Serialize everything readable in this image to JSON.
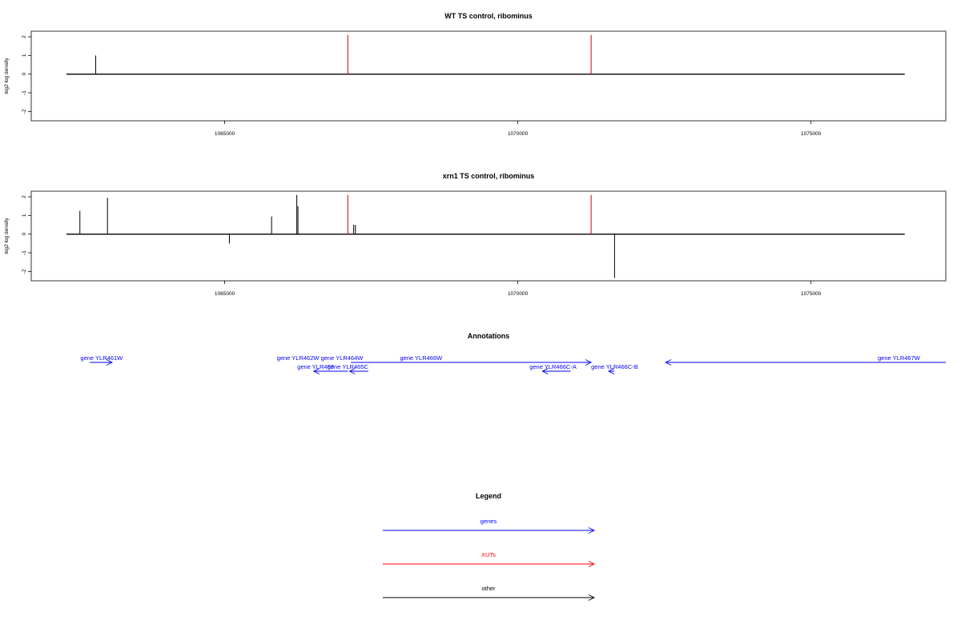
{
  "chart_data": [
    {
      "type": "bar",
      "title": "WT TS control, ribominus",
      "ylabel": "log2 log density",
      "xlim": [
        1061700,
        1077300
      ],
      "ylim": [
        -2.5,
        2.3
      ],
      "yticks": [
        -2,
        -1,
        0,
        1,
        2
      ],
      "xticks": [
        1065000,
        1070000,
        1075000
      ],
      "xtick_labels": [
        "1065000",
        "1070000",
        "1075000"
      ],
      "baseline": [
        1062300,
        1076600
      ],
      "series": [
        {
          "color": "#000000",
          "x": [
            1062800
          ],
          "values": [
            1.0
          ]
        },
        {
          "color": "#cc0000",
          "x": [
            1067100,
            1071250
          ],
          "values": [
            2.1,
            2.1
          ]
        }
      ]
    },
    {
      "type": "bar",
      "title": "xrn1 TS control, ribominus",
      "ylabel": "log2 log density",
      "xlim": [
        1061700,
        1077300
      ],
      "ylim": [
        -2.5,
        2.3
      ],
      "yticks": [
        -2,
        -1,
        0,
        1,
        2
      ],
      "xticks": [
        1065000,
        1070000,
        1075000
      ],
      "xtick_labels": [
        "1065000",
        "1070000",
        "1075000"
      ],
      "baseline": [
        1062300,
        1076600
      ],
      "series": [
        {
          "color": "#000000",
          "x": [
            1062530,
            1063000,
            1065080,
            1065800,
            1066230,
            1066250,
            1067200,
            1067230,
            1071650
          ],
          "values": [
            1.25,
            1.95,
            -0.5,
            0.95,
            2.1,
            1.5,
            0.5,
            0.5,
            -2.35
          ]
        },
        {
          "color": "#cc0000",
          "x": [
            1067100,
            1071250
          ],
          "values": [
            2.1,
            2.1
          ]
        }
      ]
    }
  ],
  "annotations": {
    "title": "Annotations",
    "genes": [
      {
        "label": "gene YLR461W",
        "label_at": 1062900,
        "strand": "+",
        "start": 1062700,
        "end": 1063080,
        "row": 0
      },
      {
        "label": "gene YLR462W",
        "label_at": 1066250,
        "strand": "+",
        "start": 1066250,
        "end": 1066250,
        "row": 0
      },
      {
        "label": "gene YLR464W",
        "label_at": 1067000,
        "strand": "+",
        "start": 1067000,
        "end": 1067000,
        "row": 0
      },
      {
        "label": "gene YLR466W",
        "label_at": 1068350,
        "strand": "+",
        "start": 1067150,
        "end": 1071250,
        "row": 0
      },
      {
        "label": "gene YLR467W",
        "label_at": 1076500,
        "strand": "+",
        "start": 1072520,
        "end": 1077300,
        "row": 0
      },
      {
        "label": "gene YLR463",
        "label_at": 1066550,
        "strand": "-",
        "start": 1066520,
        "end": 1067100,
        "row": 1
      },
      {
        "label": "gene YLR465C",
        "label_at": 1067100,
        "strand": "-",
        "start": 1067130,
        "end": 1067450,
        "row": 1
      },
      {
        "label": "gene YLR466C-A",
        "label_at": 1070600,
        "strand": "-",
        "start": 1070420,
        "end": 1070900,
        "row": 1
      },
      {
        "label": "gene YLR466C-B",
        "label_at": 1071650,
        "strand": "-",
        "start": 1071550,
        "end": 1071650,
        "row": 1
      }
    ]
  },
  "legend": {
    "title": "Legend",
    "items": [
      {
        "label": "genes",
        "color": "#0000ff"
      },
      {
        "label": "XUTs",
        "color": "#ff0000"
      },
      {
        "label": "other",
        "color": "#000000"
      }
    ]
  }
}
